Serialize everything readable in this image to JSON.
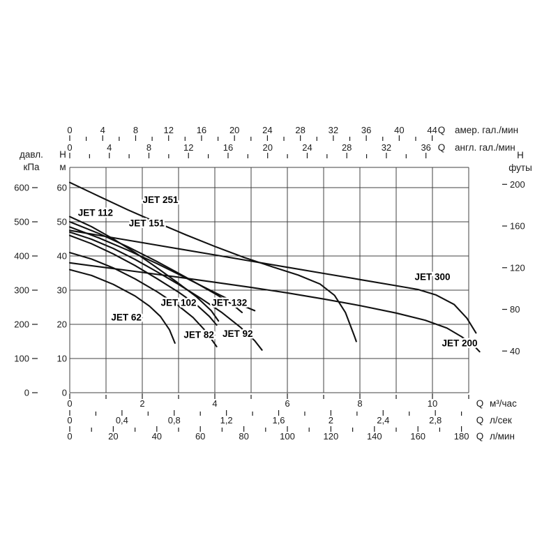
{
  "chart_data": {
    "type": "line",
    "title": "",
    "description": "Pump performance curves H(Q) for JET series pumps",
    "grid": "on",
    "axis_ranges": {
      "q_m3h": [
        0,
        11
      ],
      "h_m": [
        0,
        66
      ]
    },
    "colors": {
      "line": "#111111",
      "grid": "#404040",
      "background": "#ffffff"
    },
    "axes": {
      "top_us": {
        "q_label": "Q",
        "unit": "амер. гал./мин",
        "m3h_per_unit": 0.2271,
        "values": [
          0,
          4,
          8,
          12,
          16,
          20,
          24,
          28,
          32,
          36,
          40,
          44
        ],
        "labels": [
          "0",
          "4",
          "8",
          "12",
          "16",
          "20",
          "24",
          "28",
          "32",
          "36",
          "40",
          "44"
        ],
        "minor": [
          2,
          6,
          10,
          14,
          18,
          22,
          26,
          30,
          34,
          38,
          42
        ]
      },
      "top_imp": {
        "q_label": "Q",
        "unit": "англ. гал./мин",
        "m3h_per_unit": 0.2728,
        "values": [
          0,
          4,
          8,
          12,
          16,
          20,
          24,
          28,
          32,
          36
        ],
        "labels": [
          "0",
          "4",
          "8",
          "12",
          "16",
          "20",
          "24",
          "28",
          "32",
          "36"
        ],
        "minor": [
          2,
          6,
          10,
          14,
          18,
          22,
          26,
          30,
          34
        ]
      },
      "left_kpa": {
        "title_lines": [
          "давл.",
          "кПа"
        ],
        "values": [
          0,
          100,
          200,
          300,
          400,
          500,
          600
        ],
        "labels": [
          "0",
          "100",
          "200",
          "300",
          "400",
          "500",
          "600"
        ]
      },
      "left_m": {
        "title_lines": [
          "H",
          "м"
        ],
        "values": [
          0,
          10,
          20,
          30,
          40,
          50,
          60
        ],
        "labels": [
          "0",
          "10",
          "20",
          "30",
          "40",
          "50",
          "60"
        ]
      },
      "right_ft": {
        "title_lines": [
          "H",
          "футы"
        ],
        "values": [
          40,
          80,
          120,
          160,
          200
        ],
        "labels": [
          "40",
          "80",
          "120",
          "160",
          "200"
        ]
      },
      "bottom_m3h": {
        "q_label": "Q",
        "unit": "м³/час",
        "m3h_per_unit": 1,
        "values": [
          0,
          2,
          4,
          6,
          8,
          10
        ],
        "labels": [
          "0",
          "2",
          "4",
          "6",
          "8",
          "10"
        ],
        "minor": [
          1,
          3,
          5,
          7,
          9,
          11
        ]
      },
      "bottom_ls": {
        "q_label": "Q",
        "unit": "л/сек",
        "m3h_per_unit": 3.6,
        "values": [
          0,
          0.4,
          0.8,
          1.2,
          1.6,
          2,
          2.4,
          2.8
        ],
        "labels": [
          "0",
          "0,4",
          "0,8",
          "1,2",
          "1,6",
          "2",
          "2,4",
          "2,8"
        ],
        "minor": [
          0.2,
          0.6,
          1.0,
          1.4,
          1.8,
          2.2,
          2.6,
          3.0
        ]
      },
      "bottom_lmin": {
        "q_label": "Q",
        "unit": "л/мин",
        "m3h_per_unit": 0.06,
        "values": [
          0,
          20,
          40,
          60,
          80,
          100,
          120,
          140,
          160,
          180
        ],
        "labels": [
          "0",
          "20",
          "40",
          "60",
          "80",
          "100",
          "120",
          "140",
          "160",
          "180"
        ],
        "minor": [
          10,
          30,
          50,
          70,
          90,
          110,
          130,
          150,
          170
        ]
      }
    },
    "series": [
      {
        "name": "JET 251",
        "points": [
          [
            0,
            61.5
          ],
          [
            0.8,
            57.5
          ],
          [
            1.6,
            53.5
          ],
          [
            2.4,
            49.8
          ],
          [
            3.2,
            46.2
          ],
          [
            4,
            42.8
          ],
          [
            4.8,
            39.6
          ],
          [
            5.6,
            36.8
          ],
          [
            6.3,
            34.4
          ],
          [
            6.9,
            31.8
          ],
          [
            7.3,
            28.5
          ],
          [
            7.6,
            23.5
          ],
          [
            7.85,
            16.5
          ],
          [
            7.9,
            15
          ]
        ],
        "label_pos": [
          2.5,
          56.4
        ]
      },
      {
        "name": "JET 112",
        "points": [
          [
            0,
            51.5
          ],
          [
            0.6,
            48.6
          ],
          [
            1.2,
            45
          ],
          [
            1.8,
            41
          ],
          [
            2.4,
            36.6
          ],
          [
            3,
            32
          ],
          [
            3.5,
            28
          ],
          [
            3.9,
            24
          ],
          [
            4.1,
            21
          ]
        ],
        "label_pos": [
          0.71,
          52.7
        ]
      },
      {
        "name": "JET 151",
        "points": [
          [
            0,
            50
          ],
          [
            0.8,
            46.6
          ],
          [
            1.6,
            42.7
          ],
          [
            2.4,
            38.4
          ],
          [
            3.2,
            33.8
          ],
          [
            4,
            29
          ],
          [
            4.5,
            25.7
          ],
          [
            4.75,
            23.5
          ]
        ],
        "label_pos": [
          2.12,
          49.6
        ]
      },
      {
        "name": "JET 132",
        "points": [
          [
            0,
            48.5
          ],
          [
            0.8,
            45.3
          ],
          [
            1.6,
            41.7
          ],
          [
            2.4,
            37.8
          ],
          [
            3.2,
            33.6
          ],
          [
            4,
            29.3
          ],
          [
            4.6,
            26.2
          ],
          [
            5.1,
            24
          ]
        ],
        "label_pos": [
          4.4,
          26.3
        ]
      },
      {
        "name": "JET 102",
        "points": [
          [
            0,
            46
          ],
          [
            0.6,
            43.6
          ],
          [
            1.2,
            40.6
          ],
          [
            1.8,
            37.2
          ],
          [
            2.4,
            33.4
          ],
          [
            3,
            29.4
          ],
          [
            3.5,
            25.7
          ],
          [
            3.85,
            22.3
          ],
          [
            4.05,
            19.8
          ]
        ],
        "label_pos": [
          3.0,
          26.3
        ]
      },
      {
        "name": "JET 92",
        "points": [
          [
            0,
            47
          ],
          [
            0.6,
            44.9
          ],
          [
            1.2,
            42.2
          ],
          [
            1.8,
            39
          ],
          [
            2.4,
            35.4
          ],
          [
            3,
            31.7
          ],
          [
            3.6,
            27.7
          ],
          [
            4.2,
            23.4
          ],
          [
            4.7,
            19.2
          ],
          [
            5.1,
            15.2
          ],
          [
            5.3,
            12.5
          ]
        ],
        "label_pos": [
          4.63,
          17.2
        ]
      },
      {
        "name": "JET 82",
        "points": [
          [
            0,
            41
          ],
          [
            0.6,
            39.1
          ],
          [
            1.2,
            36.5
          ],
          [
            1.8,
            33.3
          ],
          [
            2.4,
            29.6
          ],
          [
            3,
            25.4
          ],
          [
            3.4,
            22
          ],
          [
            3.75,
            18
          ],
          [
            4.05,
            13.5
          ]
        ],
        "label_pos": [
          3.56,
          16.9
        ]
      },
      {
        "name": "JET 62",
        "points": [
          [
            0,
            36
          ],
          [
            0.6,
            34.3
          ],
          [
            1.2,
            31.7
          ],
          [
            1.8,
            28.3
          ],
          [
            2.2,
            25.3
          ],
          [
            2.5,
            22.3
          ],
          [
            2.75,
            18.4
          ],
          [
            2.9,
            14.5
          ]
        ],
        "label_pos": [
          1.56,
          22.0
        ]
      },
      {
        "name": "JET 300",
        "points": [
          [
            0,
            47.5
          ],
          [
            1,
            45.7
          ],
          [
            2,
            43.9
          ],
          [
            3,
            42.1
          ],
          [
            4,
            40.3
          ],
          [
            5,
            38.5
          ],
          [
            6,
            36.7
          ],
          [
            7,
            34.9
          ],
          [
            8,
            33.1
          ],
          [
            9,
            31.3
          ],
          [
            9.6,
            30.2
          ],
          [
            10.1,
            28.6
          ],
          [
            10.6,
            25.8
          ],
          [
            10.95,
            21.8
          ],
          [
            11.2,
            17.5
          ]
        ],
        "label_pos": [
          10.0,
          33.9
        ]
      },
      {
        "name": "JET 200",
        "points": [
          [
            0,
            38
          ],
          [
            1,
            36.6
          ],
          [
            2,
            35.2
          ],
          [
            3,
            33.8
          ],
          [
            4,
            32.3
          ],
          [
            5,
            30.8
          ],
          [
            6,
            29.2
          ],
          [
            7,
            27.4
          ],
          [
            8,
            25.5
          ],
          [
            9,
            23.3
          ],
          [
            9.8,
            21.2
          ],
          [
            10.4,
            18.9
          ],
          [
            10.8,
            16.4
          ],
          [
            11.1,
            14.2
          ],
          [
            11.3,
            12
          ]
        ],
        "label_pos": [
          10.75,
          14.5
        ]
      }
    ]
  }
}
